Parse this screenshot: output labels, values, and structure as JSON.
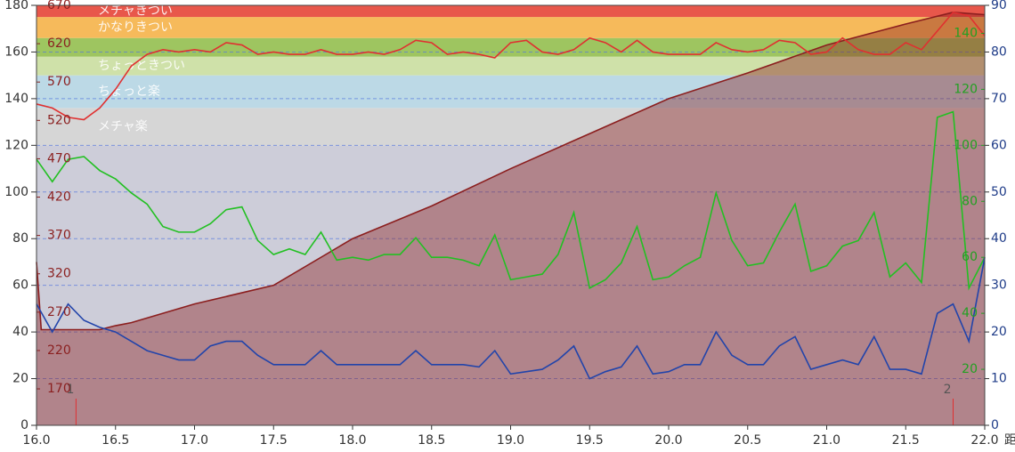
{
  "chart_data": {
    "type": "line",
    "x": [
      16.0,
      16.1,
      16.2,
      16.3,
      16.4,
      16.5,
      16.6,
      16.7,
      16.8,
      16.9,
      17.0,
      17.1,
      17.2,
      17.3,
      17.4,
      17.5,
      17.6,
      17.7,
      17.8,
      17.9,
      18.0,
      18.1,
      18.2,
      18.3,
      18.4,
      18.5,
      18.6,
      18.7,
      18.8,
      18.9,
      19.0,
      19.1,
      19.2,
      19.3,
      19.4,
      19.5,
      19.6,
      19.7,
      19.8,
      19.9,
      20.0,
      20.1,
      20.2,
      20.3,
      20.4,
      20.5,
      20.6,
      20.7,
      20.8,
      20.9,
      21.0,
      21.1,
      21.2,
      21.3,
      21.4,
      21.5,
      21.6,
      21.7,
      21.8,
      21.9,
      22.0
    ],
    "xlim": [
      16.0,
      22.0
    ],
    "xticks": [
      {
        "value": 16.0,
        "label": "16.0"
      },
      {
        "value": 16.5,
        "label": "16.5"
      },
      {
        "value": 17.0,
        "label": "17.0"
      },
      {
        "value": 17.5,
        "label": "17.5"
      },
      {
        "value": 18.0,
        "label": "18.0"
      },
      {
        "value": 18.5,
        "label": "18.5"
      },
      {
        "value": 19.0,
        "label": "19.0"
      },
      {
        "value": 19.5,
        "label": "19.5"
      },
      {
        "value": 20.0,
        "label": "20.0"
      },
      {
        "value": 20.5,
        "label": "20.5"
      },
      {
        "value": 21.0,
        "label": "21.0"
      },
      {
        "value": 21.5,
        "label": "21.5"
      },
      {
        "value": 22.0,
        "label": "22.0"
      }
    ],
    "x_unit": "距",
    "ylim": [
      0,
      180
    ],
    "yticks": [
      0,
      20,
      40,
      60,
      80,
      100,
      120,
      140,
      160,
      180
    ],
    "y2lim": [
      0,
      90
    ],
    "y2ticks": [
      0,
      10,
      20,
      30,
      40,
      50,
      60,
      70,
      80,
      90
    ],
    "y3lim": [
      0,
      150
    ],
    "y3ticks": [
      20,
      40,
      60,
      80,
      100,
      120,
      140
    ],
    "y4lim": [
      122.5,
      670
    ],
    "y4ticks": [
      170,
      220,
      270,
      320,
      370,
      420,
      470,
      520,
      570,
      620,
      670
    ],
    "grid": true,
    "zones": [
      {
        "range": [
          0,
          120
        ],
        "color": "#cdcdd9"
      },
      {
        "range": [
          120,
          136
        ],
        "color": "#d6d6d6",
        "label": "メチャ楽"
      },
      {
        "range": [
          136,
          150
        ],
        "color": "#bcd9e6",
        "label": "ちょっと楽"
      },
      {
        "range": [
          150,
          158
        ],
        "color": "#cfe1a9",
        "label": "ちょっときつい"
      },
      {
        "range": [
          158,
          166
        ],
        "color": "#9ec560"
      },
      {
        "range": [
          166,
          175
        ],
        "color": "#f6ba5b",
        "label": "かなりきつい"
      },
      {
        "range": [
          175,
          180
        ],
        "color": "#e8574b",
        "label": "メチャきつい"
      }
    ],
    "markers": [
      {
        "x": 16.25,
        "label": "1"
      },
      {
        "x": 21.8,
        "label": "2"
      }
    ],
    "series": [
      {
        "kind": "area",
        "color": "#8b1e1e",
        "x": [
          16.0,
          16.03,
          16.4,
          16.5,
          16.6,
          16.7,
          16.8,
          16.9,
          17.0,
          17.5,
          18.0,
          18.5,
          19.0,
          19.5,
          20.0,
          20.5,
          21.0,
          21.5,
          21.8,
          22.0
        ],
        "values": [
          70,
          41,
          41,
          42.7,
          44,
          46,
          48,
          50,
          52,
          60,
          80,
          94,
          110,
          125,
          140,
          151,
          163,
          172,
          177,
          176
        ]
      },
      {
        "color": "#e03030",
        "values": [
          137.7,
          136,
          132,
          131,
          136,
          144,
          154,
          159,
          161,
          160,
          161,
          160,
          164,
          163,
          159,
          160,
          159,
          159,
          161,
          159,
          159,
          160,
          159,
          161,
          165,
          164,
          159,
          160,
          159,
          157.5,
          164,
          165,
          160,
          159,
          161,
          166,
          164,
          160,
          165,
          160,
          159,
          159,
          159,
          164,
          161,
          160,
          161,
          165,
          164,
          159,
          160,
          166,
          161,
          159,
          159,
          164,
          161,
          169,
          177,
          175.5,
          167
        ]
      },
      {
        "color": "#22c022",
        "axis": "y3",
        "values": [
          95,
          87,
          95,
          96,
          91,
          88,
          83,
          79,
          71,
          69,
          69,
          72,
          77,
          78,
          66,
          61,
          63,
          61,
          69,
          59,
          60,
          59,
          61,
          61,
          67,
          60,
          60,
          59,
          57,
          68,
          52,
          53,
          54,
          61,
          76,
          49,
          52,
          58,
          71,
          52,
          53,
          57,
          60,
          83,
          66,
          57,
          58,
          69,
          79,
          55,
          57,
          64,
          66,
          76,
          53,
          58,
          51,
          110,
          112,
          49,
          60
        ]
      },
      {
        "color": "#2244aa",
        "axis": "y2",
        "values": [
          26,
          20,
          26,
          22.5,
          21,
          20,
          18,
          16,
          15,
          14,
          14,
          17,
          18,
          18,
          15,
          13,
          13,
          13,
          16,
          13,
          13,
          13,
          13,
          13,
          16,
          13,
          13,
          13,
          12.5,
          16,
          11,
          11.5,
          12,
          14,
          17,
          10,
          11.5,
          12.5,
          17,
          11,
          11.5,
          13,
          13,
          20,
          15,
          13,
          13,
          17,
          19,
          12,
          13,
          14,
          13,
          19,
          12,
          12,
          11,
          24,
          26,
          18,
          36
        ]
      }
    ]
  }
}
